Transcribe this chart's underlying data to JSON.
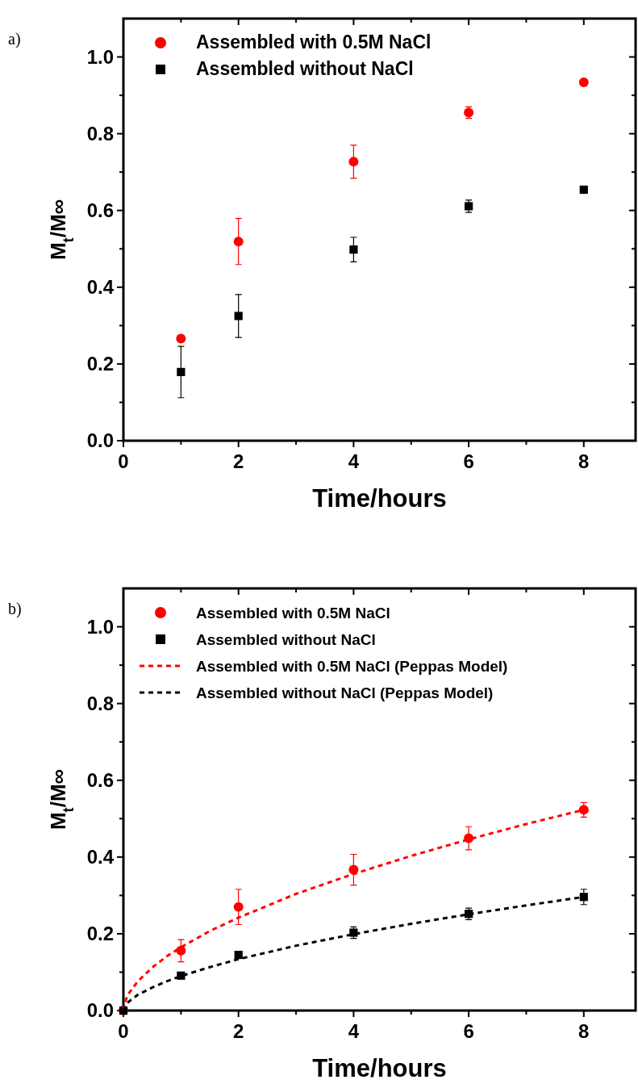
{
  "chart_data": [
    {
      "type": "scatter",
      "annotations": [
        "a)"
      ],
      "xlabel": "Time/hours",
      "ylabel": "M$_{t}$/M∞",
      "xlim": [
        0,
        8.9
      ],
      "xticks": [
        0,
        {
          "value": 1,
          "label": null
        },
        2,
        {
          "value": 3,
          "label": null
        },
        4,
        {
          "value": 5,
          "label": null
        },
        6,
        {
          "value": 7,
          "label": null
        },
        8
      ],
      "ylim": [
        0,
        1.1
      ],
      "yticks": [
        {
          "value": 0,
          "label": "0.0"
        },
        {
          "value": 0.1,
          "label": null
        },
        {
          "value": 0.2,
          "label": "0.2"
        },
        {
          "value": 0.3,
          "label": null
        },
        {
          "value": 0.4,
          "label": "0.4"
        },
        {
          "value": 0.5,
          "label": null
        },
        {
          "value": 0.6,
          "label": "0.6"
        },
        {
          "value": 0.7,
          "label": null
        },
        {
          "value": 0.8,
          "label": "0.8"
        },
        {
          "value": 0.9,
          "label": null
        },
        {
          "value": 1.0,
          "label": "1.0"
        }
      ],
      "grid": false,
      "legend": "top left",
      "series": [
        {
          "name": "Assembled with 0.5M NaCl",
          "color": "#ff0000",
          "marker": "circle",
          "x": [
            1,
            2,
            4,
            6,
            8
          ],
          "values": [
            0.266,
            0.519,
            0.727,
            0.855,
            0.934
          ],
          "errors": [
            null,
            0.06,
            0.043,
            0.015,
            null
          ]
        },
        {
          "name": "Assembled without NaCl",
          "color": "#000000",
          "marker": "square",
          "x": [
            1,
            2,
            4,
            6,
            8
          ],
          "values": [
            0.179,
            0.325,
            0.498,
            0.611,
            0.654
          ],
          "errors": [
            0.067,
            0.056,
            0.032,
            0.016,
            null
          ]
        }
      ]
    },
    {
      "type": "scatter",
      "annotations": [
        "b)"
      ],
      "xlabel": "Time/hours",
      "ylabel": "M$_{t}$/M∞",
      "xlim": [
        0,
        8.9
      ],
      "xticks": [
        0,
        {
          "value": 1,
          "label": null
        },
        2,
        {
          "value": 3,
          "label": null
        },
        4,
        {
          "value": 5,
          "label": null
        },
        6,
        {
          "value": 7,
          "label": null
        },
        8
      ],
      "ylim": [
        0,
        1.1
      ],
      "yticks": [
        {
          "value": 0,
          "label": "0.0"
        },
        {
          "value": 0.1,
          "label": null
        },
        {
          "value": 0.2,
          "label": "0.2"
        },
        {
          "value": 0.3,
          "label": null
        },
        {
          "value": 0.4,
          "label": "0.4"
        },
        {
          "value": 0.5,
          "label": null
        },
        {
          "value": 0.6,
          "label": "0.6"
        },
        {
          "value": 0.7,
          "label": null
        },
        {
          "value": 0.8,
          "label": "0.8"
        },
        {
          "value": 0.9,
          "label": null
        },
        {
          "value": 1.0,
          "label": "1.0"
        }
      ],
      "grid": false,
      "legend": "top left",
      "series": [
        {
          "name": "Assembled with 0.5M NaCl",
          "color": "#ff0000",
          "marker": "circle",
          "x": [
            0,
            1,
            2,
            4,
            6,
            8
          ],
          "values": [
            0,
            0.156,
            0.27,
            0.367,
            0.449,
            0.523
          ],
          "errors": [
            null,
            0.029,
            0.046,
            0.04,
            0.03,
            0.019
          ]
        },
        {
          "name": "Assembled without NaCl",
          "color": "#000000",
          "marker": "square",
          "x": [
            0,
            1,
            2,
            4,
            6,
            8
          ],
          "values": [
            0,
            0.091,
            0.145,
            0.203,
            0.252,
            0.296
          ],
          "errors": [
            null,
            null,
            null,
            0.015,
            0.015,
            0.02
          ]
        },
        {
          "name": "Assembled with 0.5M NaCl (Peppas Model)",
          "type": "line",
          "color": "#ff0000",
          "marker": "none",
          "line_style": "dashed",
          "x": [
            0,
            0.05,
            0.1,
            0.25,
            0.5,
            0.75,
            1,
            1.5,
            2,
            3,
            4,
            5,
            6,
            7,
            8
          ],
          "values": [
            0,
            0.031,
            0.046,
            0.076,
            0.112,
            0.141,
            0.165,
            0.207,
            0.242,
            0.304,
            0.356,
            0.403,
            0.446,
            0.486,
            0.523
          ]
        },
        {
          "name": "Assembled without NaCl (Peppas Model)",
          "type": "line",
          "color": "#000000",
          "marker": "none",
          "line_style": "dashed",
          "x": [
            0,
            0.05,
            0.1,
            0.25,
            0.5,
            0.75,
            1,
            1.5,
            2,
            3,
            4,
            5,
            6,
            7,
            8
          ],
          "values": [
            0,
            0.016,
            0.024,
            0.041,
            0.06,
            0.076,
            0.09,
            0.113,
            0.134,
            0.169,
            0.199,
            0.226,
            0.251,
            0.274,
            0.296
          ]
        }
      ]
    }
  ]
}
